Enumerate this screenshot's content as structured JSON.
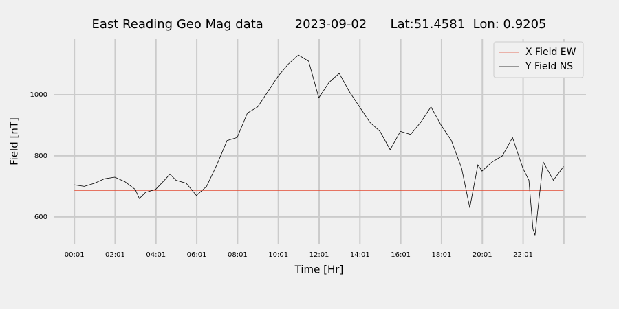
{
  "chart_data": {
    "type": "line",
    "title": "East Reading Geo Mag data        2023-09-02      Lat:51.4581  Lon: 0.9205",
    "x_label": "Time  [Hr]",
    "y_label": "Field  [nT]",
    "xlim": [
      -1.0,
      25.1
    ],
    "ylim": [
      512,
      1182
    ],
    "xticks": [
      {
        "value": 0.0167,
        "label": "00:01"
      },
      {
        "value": 2.0167,
        "label": "02:01"
      },
      {
        "value": 4.0167,
        "label": "04:01"
      },
      {
        "value": 6.0167,
        "label": "06:01"
      },
      {
        "value": 8.0167,
        "label": "08:01"
      },
      {
        "value": 10.0167,
        "label": "10:01"
      },
      {
        "value": 12.0167,
        "label": "12:01"
      },
      {
        "value": 14.0167,
        "label": "14:01"
      },
      {
        "value": 16.0167,
        "label": "16:01"
      },
      {
        "value": 18.0167,
        "label": "18:01"
      },
      {
        "value": 20.0167,
        "label": "20:01"
      },
      {
        "value": 22.0167,
        "label": "22:01"
      },
      {
        "value": 24.0167,
        "label": null
      }
    ],
    "yticks": [
      600,
      800,
      1000
    ],
    "grid": true,
    "legend": "upper right",
    "series": [
      {
        "name": "X Field EW",
        "color": "#e24a33",
        "x": [
          0.0167,
          24.0
        ],
        "values": [
          686,
          686
        ]
      },
      {
        "name": "Y Field NS",
        "color": "#000000",
        "x": [
          0.0167,
          0.5,
          1,
          1.5,
          2,
          2.5,
          3,
          3.2,
          3.5,
          4,
          4.5,
          4.7,
          5,
          5.5,
          6,
          6.5,
          7,
          7.5,
          8,
          8.5,
          9,
          9.5,
          10,
          10.5,
          11,
          11.5,
          12,
          12.5,
          13,
          13.5,
          14,
          14.5,
          15,
          15.5,
          16,
          16.5,
          17,
          17.5,
          18,
          18.5,
          19,
          19.4,
          19.8,
          20,
          20.5,
          21,
          21.5,
          22,
          22.3,
          22.5,
          22.6,
          23,
          23.5,
          24.0
        ],
        "values": [
          705,
          700,
          710,
          725,
          730,
          715,
          690,
          660,
          680,
          690,
          725,
          740,
          720,
          710,
          670,
          700,
          770,
          850,
          860,
          940,
          960,
          1010,
          1060,
          1100,
          1130,
          1110,
          990,
          1040,
          1070,
          1010,
          960,
          910,
          880,
          820,
          880,
          870,
          910,
          960,
          900,
          850,
          760,
          630,
          770,
          750,
          780,
          800,
          860,
          760,
          720,
          560,
          540,
          780,
          720,
          765
        ]
      }
    ]
  }
}
